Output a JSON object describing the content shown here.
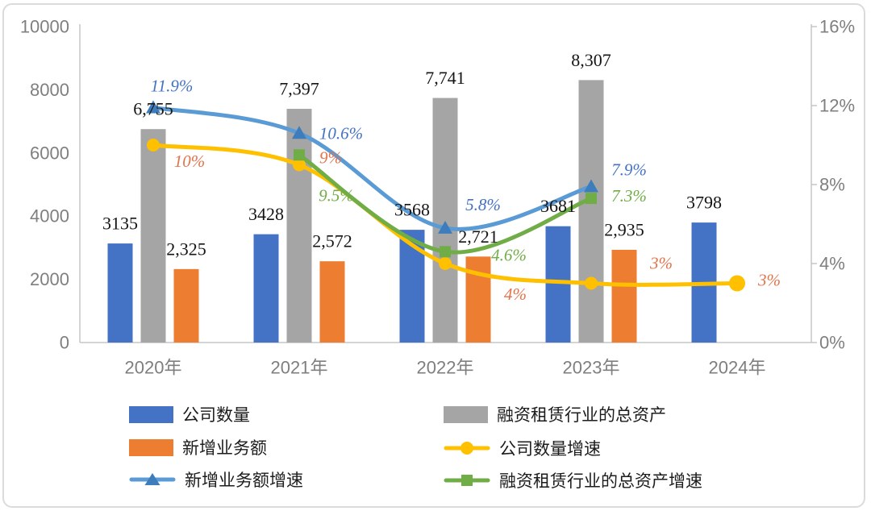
{
  "card": {
    "background": "#FFFFFF",
    "border_color": "#DBDBDB"
  },
  "chart_data": {
    "type": "combo-bar-line",
    "categories": [
      "2020年",
      "2021年",
      "2022年",
      "2023年",
      "2024年"
    ],
    "left_axis": {
      "min": 0,
      "max": 10000,
      "ticks": [
        "10000",
        "8000",
        "6000",
        "4000",
        "2000",
        "0"
      ]
    },
    "right_axis": {
      "min": 0,
      "max": 16,
      "ticks": [
        "16%",
        "12%",
        "8%",
        "4%",
        "0%"
      ]
    },
    "grid": "off",
    "axis_color": "#C6C6C6",
    "axis_text_color": "#7F7F7F",
    "bar_series": [
      {
        "key": "company-count",
        "name": "公司数量",
        "color": "#4472C4",
        "values": [
          3135,
          3428,
          3568,
          3681,
          3798
        ],
        "labels": [
          "3135",
          "3428",
          "3568",
          "3681",
          "3798"
        ]
      },
      {
        "key": "industry-total-assets",
        "name": "融资租赁行业的总资产",
        "color": "#A5A5A5",
        "values": [
          6755,
          7397,
          7741,
          8307,
          null
        ],
        "labels": [
          "6,755",
          "7,397",
          "7,741",
          "8,307",
          ""
        ]
      },
      {
        "key": "new-business-volume",
        "name": "新增业务额",
        "color": "#ED7D31",
        "values": [
          2325,
          2572,
          2721,
          2935,
          null
        ],
        "labels": [
          "2,325",
          "2,572",
          "2,721",
          "2,935",
          ""
        ]
      }
    ],
    "line_series": [
      {
        "key": "company-count-growth",
        "name": "公司数量增速",
        "color": "#FFC000",
        "marker": "circle",
        "marker_color": "#E8AC00",
        "label_color": "#E2734B",
        "values": [
          10,
          9,
          4,
          3,
          3
        ],
        "labels": [
          "10%",
          "9%",
          "4%",
          "3%",
          "3%"
        ]
      },
      {
        "key": "new-business-growth",
        "name": "新增业务额增速",
        "color": "#5B9BD5",
        "marker": "triangle",
        "marker_color": "#3D7DBC",
        "label_color": "#4472C4",
        "values": [
          11.9,
          10.6,
          5.8,
          7.9,
          null
        ],
        "labels": [
          "11.9%",
          "10.6%",
          "5.8%",
          "7.9%",
          ""
        ]
      },
      {
        "key": "total-assets-growth",
        "name": "融资租赁行业的总资产增速",
        "color": "#70AD47",
        "marker": "square",
        "marker_color": "#5F9838",
        "label_color": "#70AD47",
        "values": [
          null,
          9.5,
          4.6,
          7.3,
          null
        ],
        "labels": [
          "",
          "9.5%",
          "4.6%",
          "7.3%",
          ""
        ]
      }
    ]
  },
  "legend": {
    "items": [
      {
        "label": "公司数量"
      },
      {
        "label": "融资租赁行业的总资产"
      },
      {
        "label": "新增业务额"
      },
      {
        "label": "公司数量增速"
      },
      {
        "label": "新增业务额增速"
      },
      {
        "label": "融资租赁行业的总资产增速"
      }
    ]
  }
}
